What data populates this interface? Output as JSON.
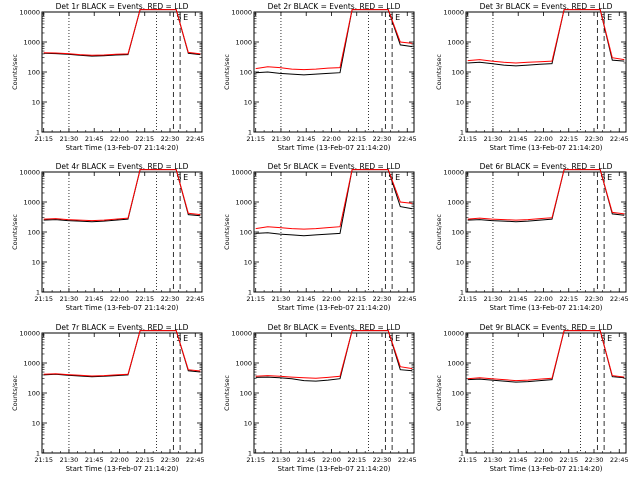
{
  "figure": {
    "event_times": [
      "22:22",
      "22:32",
      "22:36"
    ],
    "event_markers": [
      "S",
      "E"
    ],
    "colors": {
      "events": "#000000",
      "lld": "#ff0000",
      "axes": "#000000"
    }
  },
  "chart_data": [
    {
      "type": "line",
      "title": "Det 1r BLACK = Events, RED = LLD",
      "xlabel": "Start Time (13-Feb-07 21:14:20)",
      "ylabel": "Counts/sec",
      "yscale": "log",
      "ylim": [
        1,
        10000
      ],
      "xticks": [
        "21:15",
        "21:30",
        "21:45",
        "22:00",
        "22:15",
        "22:30",
        "22:45"
      ],
      "yticks": [
        "1",
        "10",
        "100",
        "1000",
        "10000"
      ],
      "series": [
        {
          "color": "black",
          "values": [
            420,
            410,
            390,
            360,
            340,
            350,
            370,
            380,
            12000,
            12000,
            12000,
            12000,
            420,
            380
          ]
        },
        {
          "color": "red",
          "values": [
            440,
            430,
            410,
            380,
            360,
            370,
            390,
            400,
            12000,
            12000,
            12000,
            12000,
            450,
            400
          ]
        }
      ]
    },
    {
      "type": "line",
      "title": "Det 2r BLACK = Events, RED = LLD",
      "xlabel": "Start Time (13-Feb-07 21:14:20)",
      "ylabel": "Counts/sec",
      "yscale": "log",
      "ylim": [
        1,
        10000
      ],
      "xticks": [
        "21:15",
        "21:30",
        "21:45",
        "22:00",
        "22:15",
        "22:30",
        "22:45"
      ],
      "yticks": [
        "1",
        "10",
        "100",
        "1000",
        "10000"
      ],
      "series": [
        {
          "color": "black",
          "values": [
            95,
            100,
            90,
            85,
            80,
            85,
            90,
            95,
            12000,
            12000,
            12000,
            12000,
            800,
            700
          ]
        },
        {
          "color": "red",
          "values": [
            130,
            150,
            140,
            125,
            120,
            125,
            135,
            140,
            12000,
            12000,
            12000,
            12000,
            1000,
            900
          ]
        }
      ]
    },
    {
      "type": "line",
      "title": "Det 3r BLACK = Events, RED = LLD",
      "xlabel": "Start Time (13-Feb-07 21:14:20)",
      "ylabel": "Counts/sec",
      "yscale": "log",
      "ylim": [
        1,
        10000
      ],
      "xticks": [
        "21:15",
        "21:30",
        "21:45",
        "22:00",
        "22:15",
        "22:30",
        "22:45"
      ],
      "yticks": [
        "1",
        "10",
        "100",
        "1000",
        "10000"
      ],
      "series": [
        {
          "color": "black",
          "values": [
            200,
            210,
            190,
            170,
            160,
            170,
            180,
            190,
            12000,
            12000,
            12000,
            12000,
            250,
            230
          ]
        },
        {
          "color": "red",
          "values": [
            240,
            260,
            230,
            210,
            200,
            210,
            220,
            230,
            12000,
            12000,
            12000,
            12000,
            300,
            260
          ]
        }
      ]
    },
    {
      "type": "line",
      "title": "Det 4r BLACK = Events, RED = LLD",
      "xlabel": "Start Time (13-Feb-07 21:14:20)",
      "ylabel": "Counts/sec",
      "yscale": "log",
      "ylim": [
        1,
        10000
      ],
      "xticks": [
        "21:15",
        "21:30",
        "21:45",
        "22:00",
        "22:15",
        "22:30",
        "22:45"
      ],
      "yticks": [
        "1",
        "10",
        "100",
        "1000",
        "10000"
      ],
      "series": [
        {
          "color": "black",
          "values": [
            250,
            260,
            240,
            230,
            220,
            230,
            250,
            270,
            12000,
            12000,
            12000,
            12000,
            380,
            350
          ]
        },
        {
          "color": "red",
          "values": [
            270,
            280,
            260,
            250,
            240,
            250,
            270,
            290,
            12000,
            12000,
            12000,
            12000,
            420,
            380
          ]
        }
      ]
    },
    {
      "type": "line",
      "title": "Det 5r BLACK = Events, RED = LLD",
      "xlabel": "Start Time (13-Feb-07 21:14:20)",
      "ylabel": "Counts/sec",
      "yscale": "log",
      "ylim": [
        1,
        10000
      ],
      "xticks": [
        "21:15",
        "21:30",
        "21:45",
        "22:00",
        "22:15",
        "22:30",
        "22:45"
      ],
      "yticks": [
        "1",
        "10",
        "100",
        "1000",
        "10000"
      ],
      "series": [
        {
          "color": "black",
          "values": [
            90,
            95,
            85,
            80,
            75,
            80,
            85,
            90,
            12000,
            12000,
            12000,
            12000,
            700,
            600
          ]
        },
        {
          "color": "red",
          "values": [
            130,
            150,
            140,
            130,
            125,
            130,
            140,
            150,
            12000,
            12000,
            12000,
            12000,
            1000,
            900
          ]
        }
      ]
    },
    {
      "type": "line",
      "title": "Det 6r BLACK = Events, RED = LLD",
      "xlabel": "Start Time (13-Feb-07 21:14:20)",
      "ylabel": "Counts/sec",
      "yscale": "log",
      "ylim": [
        1,
        10000
      ],
      "xticks": [
        "21:15",
        "21:30",
        "21:45",
        "22:00",
        "22:15",
        "22:30",
        "22:45"
      ],
      "yticks": [
        "1",
        "10",
        "100",
        "1000",
        "10000"
      ],
      "series": [
        {
          "color": "black",
          "values": [
            250,
            260,
            240,
            230,
            220,
            230,
            250,
            270,
            12000,
            12000,
            12000,
            12000,
            400,
            360
          ]
        },
        {
          "color": "red",
          "values": [
            270,
            290,
            270,
            260,
            250,
            260,
            280,
            300,
            12000,
            12000,
            12000,
            12000,
            450,
            400
          ]
        }
      ]
    },
    {
      "type": "line",
      "title": "Det 7r BLACK = Events, RED = LLD",
      "xlabel": "Start Time (13-Feb-07 21:14:20)",
      "ylabel": "Counts/sec",
      "yscale": "log",
      "ylim": [
        1,
        10000
      ],
      "xticks": [
        "21:15",
        "21:30",
        "21:45",
        "22:00",
        "22:15",
        "22:30",
        "22:45"
      ],
      "yticks": [
        "1",
        "10",
        "100",
        "1000",
        "10000"
      ],
      "series": [
        {
          "color": "black",
          "values": [
            400,
            420,
            390,
            370,
            350,
            360,
            380,
            400,
            12000,
            12000,
            12000,
            12000,
            550,
            500
          ]
        },
        {
          "color": "red",
          "values": [
            420,
            440,
            410,
            390,
            370,
            380,
            400,
            420,
            12000,
            12000,
            12000,
            12000,
            600,
            540
          ]
        }
      ]
    },
    {
      "type": "line",
      "title": "Det 8r BLACK = Events, RED = LLD",
      "xlabel": "Start Time (13-Feb-07 21:14:20)",
      "ylabel": "Counts/sec",
      "yscale": "log",
      "ylim": [
        1,
        10000
      ],
      "xticks": [
        "21:15",
        "21:30",
        "21:45",
        "22:00",
        "22:15",
        "22:30",
        "22:45"
      ],
      "yticks": [
        "1",
        "10",
        "100",
        "1000",
        "10000"
      ],
      "series": [
        {
          "color": "black",
          "values": [
            330,
            340,
            320,
            300,
            260,
            250,
            270,
            300,
            12000,
            12000,
            12000,
            12000,
            600,
            550
          ]
        },
        {
          "color": "red",
          "values": [
            360,
            380,
            360,
            340,
            320,
            310,
            330,
            360,
            12000,
            12000,
            12000,
            12000,
            750,
            650
          ]
        }
      ]
    },
    {
      "type": "line",
      "title": "Det 9r BLACK = Events, RED = LLD",
      "xlabel": "Start Time (13-Feb-07 21:14:20)",
      "ylabel": "Counts/sec",
      "yscale": "log",
      "ylim": [
        1,
        10000
      ],
      "xticks": [
        "21:15",
        "21:30",
        "21:45",
        "22:00",
        "22:15",
        "22:30",
        "22:45"
      ],
      "yticks": [
        "1",
        "10",
        "100",
        "1000",
        "10000"
      ],
      "series": [
        {
          "color": "black",
          "values": [
            280,
            290,
            270,
            250,
            230,
            240,
            260,
            280,
            12000,
            12000,
            12000,
            12000,
            350,
            320
          ]
        },
        {
          "color": "red",
          "values": [
            300,
            320,
            300,
            280,
            260,
            270,
            290,
            310,
            12000,
            12000,
            12000,
            12000,
            380,
            340
          ]
        }
      ]
    }
  ]
}
